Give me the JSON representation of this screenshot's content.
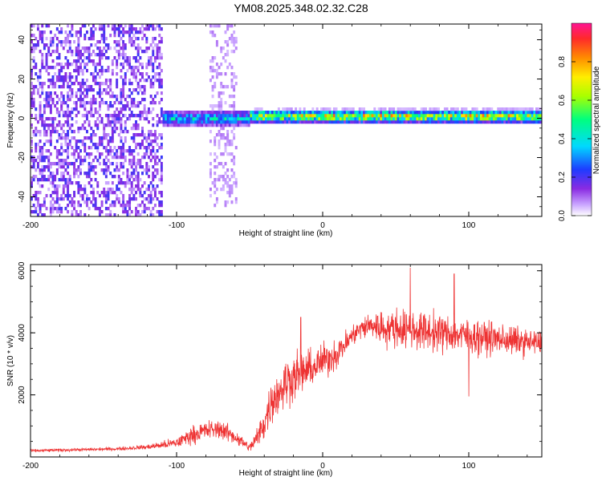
{
  "figure_title": "YM08.2025.348.02.32.C28",
  "chart_data": [
    {
      "type": "heatmap",
      "title": "",
      "xlabel": "Height of straight line (km)",
      "ylabel": "Frequency (Hz)",
      "xlim": [
        -200,
        150
      ],
      "ylim": [
        -50,
        48
      ],
      "x_ticks": [
        -200,
        -100,
        0,
        100
      ],
      "y_ticks": [
        -40,
        -20,
        0,
        20,
        40
      ],
      "x_tick_labels": [
        "-200",
        "-100",
        "0",
        "100"
      ],
      "y_tick_labels": [
        "-40",
        "-20",
        "0",
        "20",
        "40"
      ],
      "colorbar": {
        "label": "Normalized spectral amplitude",
        "range": [
          0,
          1
        ],
        "ticks": [
          0.0,
          0.2,
          0.4,
          0.6,
          0.8
        ],
        "tick_labels": [
          "0.0",
          "0.2",
          "0.4",
          "0.6",
          "0.8"
        ],
        "colormap": [
          "#ffffff",
          "#c8a2ff",
          "#8a2be2",
          "#1e3cff",
          "#00d9ff",
          "#00ff7f",
          "#a8ff00",
          "#ffee00",
          "#ff8c00",
          "#ff2a2a",
          "#ff1493"
        ]
      },
      "features": [
        {
          "x_range": [
            -200,
            -110
          ],
          "freq_range": [
            -50,
            48
          ],
          "amplitude": 0.12,
          "pattern": "broadband scatter"
        },
        {
          "x_range": [
            -78,
            -58
          ],
          "freq_range": [
            -45,
            48
          ],
          "amplitude": 0.05,
          "pattern": "faint broadband band"
        },
        {
          "x_range": [
            -110,
            -50
          ],
          "freq_center": 0,
          "freq_halfwidth": 3,
          "amplitude": 0.4,
          "pattern": "tonal line"
        },
        {
          "x_range": [
            -50,
            150
          ],
          "freq_center": 1,
          "freq_halfwidth": 2,
          "amplitude": 0.75,
          "pattern": "strong tonal line"
        }
      ]
    },
    {
      "type": "line",
      "title": "",
      "xlabel": "Height of straight line (km)",
      "ylabel": "SNR (10 * v/v)",
      "xlim": [
        -200,
        150
      ],
      "ylim": [
        0,
        6200
      ],
      "x_ticks": [
        -200,
        -100,
        0,
        100
      ],
      "y_ticks": [
        2000,
        4000,
        6000
      ],
      "x_tick_labels": [
        "-200",
        "-100",
        "0",
        "100"
      ],
      "y_tick_labels": [
        "2000",
        "4000",
        "6000"
      ],
      "series": [
        {
          "name": "SNR",
          "color": "#ee3333",
          "x": [
            -200,
            -180,
            -160,
            -140,
            -120,
            -100,
            -90,
            -80,
            -70,
            -60,
            -50,
            -45,
            -40,
            -35,
            -30,
            -25,
            -20,
            -15,
            -10,
            -5,
            0,
            5,
            10,
            15,
            20,
            25,
            30,
            35,
            40,
            50,
            60,
            70,
            80,
            90,
            100,
            110,
            120,
            130,
            140,
            150
          ],
          "y": [
            200,
            220,
            240,
            260,
            320,
            450,
            700,
            850,
            900,
            650,
            300,
            600,
            1100,
            1800,
            2100,
            2400,
            2600,
            2700,
            2800,
            2900,
            3100,
            3200,
            3350,
            3600,
            3900,
            4100,
            4200,
            4250,
            4150,
            4150,
            4100,
            4050,
            4000,
            3950,
            3900,
            3850,
            3800,
            3750,
            3700,
            3650
          ],
          "spread": [
            70,
            70,
            70,
            80,
            110,
            250,
            400,
            450,
            450,
            350,
            200,
            500,
            800,
            1000,
            1100,
            1200,
            1100,
            1000,
            900,
            800,
            800,
            800,
            700,
            600,
            500,
            500,
            600,
            700,
            800,
            900,
            900,
            900,
            900,
            800,
            800,
            800,
            700,
            700,
            600,
            600
          ],
          "peaks": [
            {
              "x": 60,
              "y": 6100
            },
            {
              "x": -15,
              "y": 4500
            },
            {
              "x": 90,
              "y": 5900
            },
            {
              "x": 100,
              "y": 1950
            }
          ]
        }
      ]
    }
  ]
}
